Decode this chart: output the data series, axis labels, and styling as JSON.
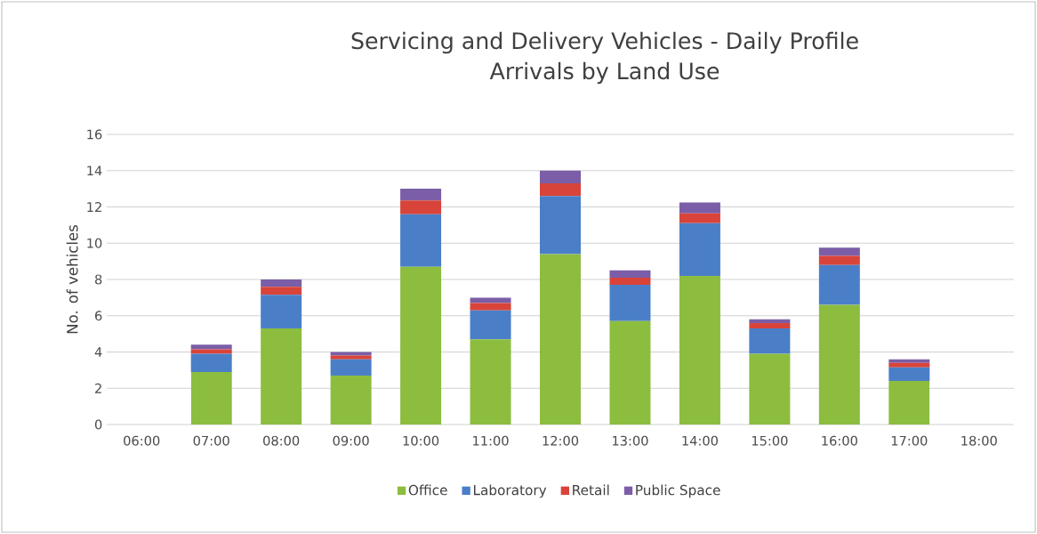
{
  "chart_data": {
    "type": "bar",
    "stacked": true,
    "title": "Servicing and Delivery Vehicles - Daily Profile",
    "subtitle": "Arrivals by Land Use",
    "ylabel": "No. of vehicles",
    "categories": [
      "06:00",
      "07:00",
      "08:00",
      "09:00",
      "10:00",
      "11:00",
      "12:00",
      "13:00",
      "14:00",
      "15:00",
      "16:00",
      "17:00",
      "18:00"
    ],
    "series": [
      {
        "name": "Office",
        "color": "#8cbd3f",
        "values": [
          0,
          2.9,
          5.3,
          2.7,
          8.7,
          4.7,
          9.4,
          5.7,
          8.2,
          3.9,
          6.6,
          2.4,
          0
        ]
      },
      {
        "name": "Laboratory",
        "color": "#4a7fc8",
        "values": [
          0,
          1.0,
          1.85,
          0.9,
          2.9,
          1.6,
          3.2,
          2.0,
          2.9,
          1.4,
          2.2,
          0.75,
          0
        ]
      },
      {
        "name": "Retail",
        "color": "#d9443a",
        "values": [
          0,
          0.25,
          0.45,
          0.2,
          0.75,
          0.4,
          0.7,
          0.4,
          0.55,
          0.3,
          0.5,
          0.25,
          0
        ]
      },
      {
        "name": "Public Space",
        "color": "#7b5ea7",
        "values": [
          0,
          0.25,
          0.4,
          0.2,
          0.65,
          0.3,
          0.7,
          0.4,
          0.6,
          0.2,
          0.45,
          0.2,
          0
        ]
      }
    ],
    "ylim": [
      0,
      16
    ],
    "yticks": [
      0,
      2,
      4,
      6,
      8,
      10,
      12,
      14,
      16
    ],
    "grid": "y",
    "legend": "bottom"
  }
}
